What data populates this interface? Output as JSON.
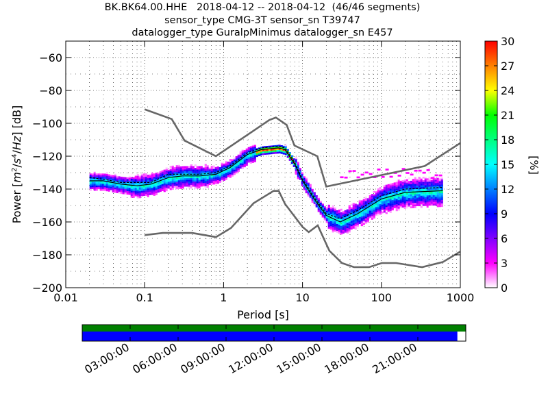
{
  "title_lines": [
    "BK.BK64.00.HHE   2018-04-12 -- 2018-04-12  (46/46 segments)",
    "sensor_type CMG-3T sensor_sn T39747",
    "datalogger_type GuralpMinimus datalogger_sn E457"
  ],
  "chart_data": {
    "type": "heatmap",
    "xlabel": "Period [s]",
    "ylabel": "Power [m²/s⁴/Hz] [dB]",
    "xscale": "log",
    "xlim": [
      0.01,
      1000
    ],
    "ylim": [
      -200,
      -50
    ],
    "x_ticks": [
      0.01,
      0.1,
      1,
      10,
      100,
      1000
    ],
    "x_tick_labels": [
      "0.01",
      "0.1",
      "1",
      "10",
      "100",
      "1000"
    ],
    "y_ticks": [
      -200,
      -180,
      -160,
      -140,
      -120,
      -100,
      -80,
      -60
    ],
    "y_tick_labels": [
      "−200",
      "−180",
      "−160",
      "−140",
      "−120",
      "−100",
      "−80",
      "−60"
    ],
    "grid": true,
    "colorbar": {
      "label": "[%]",
      "range": [
        0,
        30
      ],
      "ticks": [
        0,
        3,
        6,
        9,
        12,
        15,
        18,
        21,
        24,
        27,
        30
      ],
      "tick_labels": [
        "0",
        "3",
        "6",
        "9",
        "12",
        "15",
        "18",
        "21",
        "24",
        "27",
        "30"
      ],
      "colormap": [
        "#ffffff",
        "#ff00ff",
        "#8000ff",
        "#0000ff",
        "#0080ff",
        "#00ffff",
        "#00ff80",
        "#00ff00",
        "#ffff00",
        "#ff8000",
        "#ff0000"
      ]
    },
    "series": [
      {
        "role": "new_high_noise_model",
        "color": "#666666",
        "x": [
          0.1,
          0.22,
          0.32,
          0.8,
          3.8,
          4.6,
          6.3,
          7.9,
          15.4,
          20,
          354,
          1000
        ],
        "y": [
          -91.5,
          -97.4,
          -110.5,
          -120,
          -98,
          -96.5,
          -101,
          -113.5,
          -120,
          -138.5,
          -126,
          -112
        ]
      },
      {
        "role": "new_low_noise_model",
        "color": "#666666",
        "x": [
          0.1,
          0.17,
          0.4,
          0.8,
          1.24,
          2.4,
          4.3,
          5,
          6,
          10,
          12,
          15.6,
          21.9,
          31.6,
          45,
          70,
          101,
          154,
          328,
          600,
          1000
        ],
        "y": [
          -168,
          -166.7,
          -166.7,
          -169.2,
          -163.7,
          -148.6,
          -141.1,
          -141.1,
          -149,
          -163,
          -166.2,
          -162.1,
          -177.5,
          -185,
          -187.5,
          -187.5,
          -185,
          -185,
          -187.5,
          -184.4,
          -178
        ]
      },
      {
        "role": "mean",
        "color": "#000000",
        "x": [
          0.02,
          0.03,
          0.05,
          0.08,
          0.12,
          0.2,
          0.3,
          0.5,
          0.8,
          1.2,
          2,
          3,
          5,
          6,
          8,
          10,
          15,
          20,
          30,
          50,
          100,
          200,
          600
        ],
        "y": [
          -135,
          -135,
          -137,
          -138,
          -137,
          -133,
          -132,
          -132,
          -131,
          -127,
          -119,
          -116,
          -115,
          -116,
          -125,
          -135,
          -148,
          -156,
          -160,
          -155,
          -146,
          -142,
          -141
        ]
      },
      {
        "role": "mode",
        "color": "#000000",
        "x": [
          0.02,
          0.03,
          0.05,
          0.08,
          0.12,
          0.2,
          0.3,
          0.5,
          0.8,
          1.2,
          2,
          3,
          5,
          6,
          8,
          10,
          15,
          20,
          30,
          50,
          100,
          200,
          600
        ],
        "y": [
          -133,
          -134,
          -136,
          -136,
          -136,
          -131,
          -131,
          -131,
          -130,
          -126,
          -118,
          -115,
          -114,
          -115,
          -124,
          -134,
          -147,
          -155,
          -158,
          -153,
          -144,
          -140,
          -139
        ]
      }
    ]
  },
  "availability": {
    "time_labels": [
      "03:00:00",
      "06:00:00",
      "09:00:00",
      "12:00:00",
      "15:00:00",
      "18:00:00",
      "21:00:00"
    ],
    "top_bar_color": "#008000",
    "data_color": "#0000ff",
    "data_fraction_covered": 0.978
  }
}
